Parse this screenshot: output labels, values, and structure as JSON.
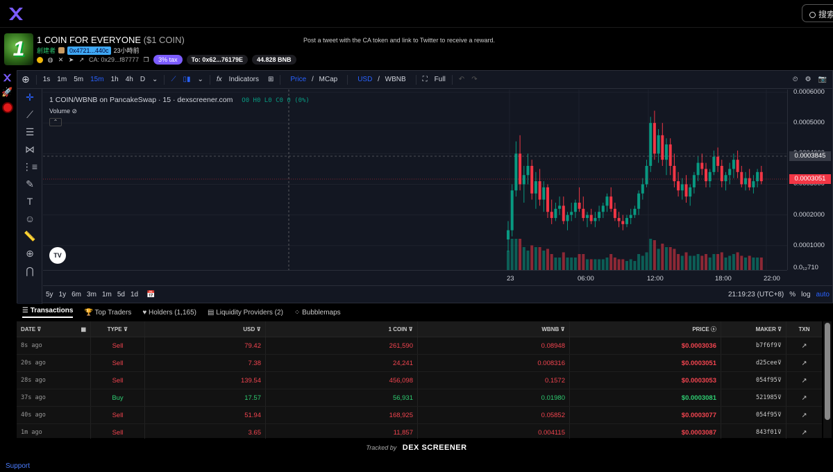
{
  "header": {
    "search_label": "搜索"
  },
  "token": {
    "avatar_text": "1",
    "name": "1 COIN FOR EVERYONE",
    "symbol": "($1 COIN)",
    "promo": "Post a tweet with the CA token and link to Twitter to receive a reward.",
    "creator_label": "創建者",
    "creator_address": "0x4721...440c",
    "created_ago": "23小時前",
    "ca": "CA: 0x29...f87777",
    "tax": "3% tax",
    "to_address": "To: 0x62...76179E",
    "liquidity": "44.828 BNB"
  },
  "chart_toolbar": {
    "intervals": [
      "1s",
      "1m",
      "5m",
      "15m",
      "1h",
      "4h",
      "D"
    ],
    "active_interval": "15m",
    "indicators_label": "Indicators",
    "price_label": "Price",
    "mcap_label": "MCap",
    "usd_label": "USD",
    "wbnb_label": "WBNB",
    "full_label": "Full"
  },
  "chart_legend": {
    "title": "1 COIN/WBNB on PancakeSwap · 15 · dexscreener.com",
    "ohlc": "O0 H0 L0 C0 0 (0%)",
    "volume_label": "Volume"
  },
  "chart_data": {
    "type": "candlestick",
    "price_ticks": [
      "0.0006000",
      "0.0005000",
      "0.0004000",
      "0.0003000",
      "0.0002000",
      "0.0001000",
      "0.0₁₂710"
    ],
    "price_tag_current": "0.0003051",
    "price_tag_crosshair": "0.0003845",
    "time_ticks": [
      "23",
      "06:00",
      "12:00",
      "18:00",
      "22:00"
    ],
    "ylim": [
      2.71e-05,
      0.0006
    ],
    "candles": [
      [
        0.00012,
        0.00018,
        8e-05,
        0.00015
      ],
      [
        0.00015,
        0.0003,
        0.00013,
        0.00028
      ],
      [
        0.00028,
        0.00044,
        0.00026,
        0.0004
      ],
      [
        0.0004,
        0.00046,
        0.00028,
        0.0003
      ],
      [
        0.0003,
        0.00036,
        0.00024,
        0.00033
      ],
      [
        0.00033,
        0.0004,
        0.0003,
        0.00036
      ],
      [
        0.00036,
        0.00038,
        0.00025,
        0.00027
      ],
      [
        0.00027,
        0.00034,
        0.00022,
        0.00031
      ],
      [
        0.00031,
        0.00035,
        0.00023,
        0.00025
      ],
      [
        0.00025,
        0.00031,
        0.00021,
        0.00029
      ],
      [
        0.00029,
        0.0003,
        0.00019,
        0.00021
      ],
      [
        0.00021,
        0.00025,
        0.00017,
        0.00019
      ],
      [
        0.00019,
        0.00024,
        0.00018,
        0.00022
      ],
      [
        0.00022,
        0.00026,
        0.0002,
        0.00023
      ],
      [
        0.00023,
        0.00026,
        0.00017,
        0.00018
      ],
      [
        0.00018,
        0.00021,
        0.00015,
        0.0002
      ],
      [
        0.0002,
        0.00024,
        0.00018,
        0.00021
      ],
      [
        0.00021,
        0.00025,
        0.00019,
        0.00024
      ],
      [
        0.00024,
        0.00029,
        0.00021,
        0.00022
      ],
      [
        0.00022,
        0.00026,
        0.00018,
        0.00019
      ],
      [
        0.00019,
        0.00021,
        0.00016,
        0.0002
      ],
      [
        0.0002,
        0.00022,
        0.00017,
        0.00018
      ],
      [
        0.00018,
        0.00021,
        0.00016,
        0.00019
      ],
      [
        0.00019,
        0.00023,
        0.00018,
        0.00021
      ],
      [
        0.00021,
        0.00024,
        0.00019,
        0.00023
      ],
      [
        0.00023,
        0.00027,
        0.00021,
        0.00026
      ],
      [
        0.00026,
        0.00029,
        0.00021,
        0.00022
      ],
      [
        0.00022,
        0.00024,
        0.00018,
        0.00019
      ],
      [
        0.00019,
        0.00021,
        0.00016,
        0.00018
      ],
      [
        0.00018,
        0.0002,
        0.00015,
        0.00017
      ],
      [
        0.00017,
        0.0002,
        0.00016,
        0.00019
      ],
      [
        0.00019,
        0.00022,
        0.00017,
        0.0002
      ],
      [
        0.0002,
        0.00023,
        0.00019,
        0.00022
      ],
      [
        0.00022,
        0.00028,
        0.0002,
        0.00027
      ],
      [
        0.00027,
        0.00032,
        0.00025,
        0.0003
      ],
      [
        0.0003,
        0.00038,
        0.00029,
        0.00036
      ],
      [
        0.00036,
        0.00052,
        0.00034,
        0.0005
      ],
      [
        0.0005,
        0.00054,
        0.00038,
        0.0004
      ],
      [
        0.0004,
        0.00048,
        0.00037,
        0.00046
      ],
      [
        0.00046,
        0.0005,
        0.00036,
        0.00038
      ],
      [
        0.00038,
        0.00045,
        0.00033,
        0.00043
      ],
      [
        0.00043,
        0.00045,
        0.00033,
        0.00036
      ],
      [
        0.00036,
        0.0004,
        0.00029,
        0.00031
      ],
      [
        0.00031,
        0.00034,
        0.00026,
        0.00028
      ],
      [
        0.00028,
        0.00032,
        0.00025,
        0.0003
      ],
      [
        0.0003,
        0.00033,
        0.00024,
        0.00026
      ],
      [
        0.00026,
        0.0003,
        0.00023,
        0.00029
      ],
      [
        0.00029,
        0.00034,
        0.00027,
        0.00033
      ],
      [
        0.00033,
        0.00039,
        0.00031,
        0.00037
      ],
      [
        0.00037,
        0.0004,
        0.00033,
        0.00035
      ],
      [
        0.00035,
        0.00037,
        0.00029,
        0.00031
      ],
      [
        0.00031,
        0.00035,
        0.00029,
        0.00034
      ],
      [
        0.00034,
        0.00041,
        0.00033,
        0.00039
      ],
      [
        0.00039,
        0.00042,
        0.00034,
        0.00036
      ],
      [
        0.00036,
        0.00038,
        0.00029,
        0.00031
      ],
      [
        0.00031,
        0.00034,
        0.00028,
        0.00033
      ],
      [
        0.00033,
        0.00037,
        0.0003,
        0.00035
      ],
      [
        0.00035,
        0.0004,
        0.00032,
        0.00038
      ],
      [
        0.00038,
        0.00041,
        0.00032,
        0.00034
      ],
      [
        0.00034,
        0.00036,
        0.00029,
        0.0003
      ],
      [
        0.0003,
        0.00034,
        0.00028,
        0.00032
      ],
      [
        0.00032,
        0.00035,
        0.00028,
        0.00029
      ],
      [
        0.00029,
        0.00033,
        0.00027,
        0.00031
      ],
      [
        0.00031,
        0.00035,
        0.00029,
        0.00034
      ],
      [
        0.00034,
        0.00036,
        0.0003,
        0.00031
      ]
    ]
  },
  "chart_bottom": {
    "ranges": [
      "5y",
      "1y",
      "6m",
      "3m",
      "1m",
      "5d",
      "1d"
    ],
    "clock": "21:19:23 (UTC+8)",
    "pct": "%",
    "log": "log",
    "auto": "auto"
  },
  "tabs": [
    {
      "label": "Transactions"
    },
    {
      "label": "Top Traders"
    },
    {
      "label": "Holders (1,165)"
    },
    {
      "label": "Liquidity Providers (2)"
    },
    {
      "label": "Bubblemaps"
    }
  ],
  "table": {
    "headers": {
      "date": "DATE",
      "type": "TYPE",
      "usd": "USD",
      "coin": "1 COIN",
      "wbnb": "WBNB",
      "price": "PRICE",
      "maker": "MAKER",
      "txn": "TXN"
    },
    "rows": [
      {
        "date": "8s ago",
        "type": "Sell",
        "usd": "79.42",
        "coin": "261,590",
        "wbnb": "0.08948",
        "price": "$0.0003036",
        "maker": "b7f6f9"
      },
      {
        "date": "20s ago",
        "type": "Sell",
        "usd": "7.38",
        "coin": "24,241",
        "wbnb": "0.008316",
        "price": "$0.0003051",
        "maker": "d25cee"
      },
      {
        "date": "28s ago",
        "type": "Sell",
        "usd": "139.54",
        "coin": "456,098",
        "wbnb": "0.1572",
        "price": "$0.0003053",
        "maker": "054f95"
      },
      {
        "date": "37s ago",
        "type": "Buy",
        "usd": "17.57",
        "coin": "56,931",
        "wbnb": "0.01980",
        "price": "$0.0003081",
        "maker": "521985"
      },
      {
        "date": "40s ago",
        "type": "Sell",
        "usd": "51.94",
        "coin": "168,925",
        "wbnb": "0.05852",
        "price": "$0.0003077",
        "maker": "054f95"
      },
      {
        "date": "1m ago",
        "type": "Sell",
        "usd": "3.65",
        "coin": "11,857",
        "wbnb": "0.004115",
        "price": "$0.0003087",
        "maker": "843f01"
      }
    ]
  },
  "footer": {
    "tracked_by": "Tracked by",
    "brand": "DEX SCREENER",
    "support": "Support"
  },
  "colors": {
    "up": "#089981",
    "down": "#f23645",
    "accent": "#2962ff",
    "buy": "#2ecc71",
    "sell": "#f2444f"
  }
}
